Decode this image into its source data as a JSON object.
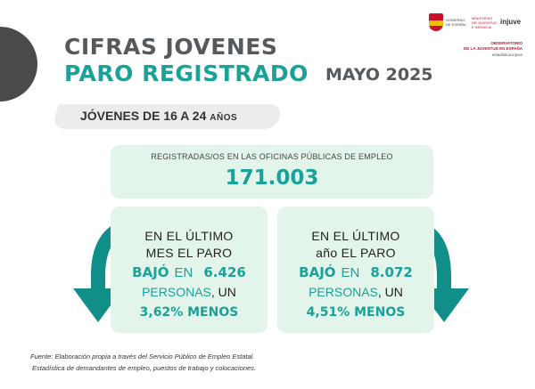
{
  "header": {
    "title_line1": "CIFRAS JOVENES",
    "title_line2": "PARO REGISTRADO",
    "date": "MAYO 2025"
  },
  "logos": {
    "gov_line1": "GOBIERNO DE ESPAÑA",
    "gov_line2": "MINISTERIO DE JUVENTUD E INFANCIA",
    "injuve": "injuve",
    "observatorio_line1": "OBSERVATORIO",
    "observatorio_line2": "DE LA JUVENTUD EN ESPAÑA",
    "site": "estadistica.injuve"
  },
  "subtitle": {
    "main": "JÓVENES DE 16 A 24 ",
    "small": "AÑOS"
  },
  "main_stat": {
    "label": "REGISTRADAS/OS EN LAS OFICINAS PÚBLICAS DE EMPLEO",
    "value": "171.003"
  },
  "monthly": {
    "line1": "EN EL ÚLTIMO",
    "line2": "MES EL PARO",
    "verb": "BAJÓ",
    "en": "EN",
    "number": "6.426",
    "persons": "PERSONAS",
    "persons_tail": ", UN",
    "percent": "3,62% MENOS"
  },
  "yearly": {
    "line1": "EN EL ÚLTIMO",
    "line2": "año EL PARO",
    "verb": "BAJÓ",
    "en": "EN",
    "number": "8.072",
    "persons": "PERSONAS",
    "persons_tail": ", UN",
    "percent": "4,51% MENOS"
  },
  "source": {
    "line1": "Fuente: Elaboración propia a través del Servicio Público de Empleo Estatal.",
    "line2": "Estadística de demandantes de empleo, puestos de trabajo y colocaciones."
  },
  "colors": {
    "teal": "#1aa198",
    "box_bg": "#e3f4ea",
    "arrow": "#0f8f88",
    "gray_text": "#555a5e"
  }
}
